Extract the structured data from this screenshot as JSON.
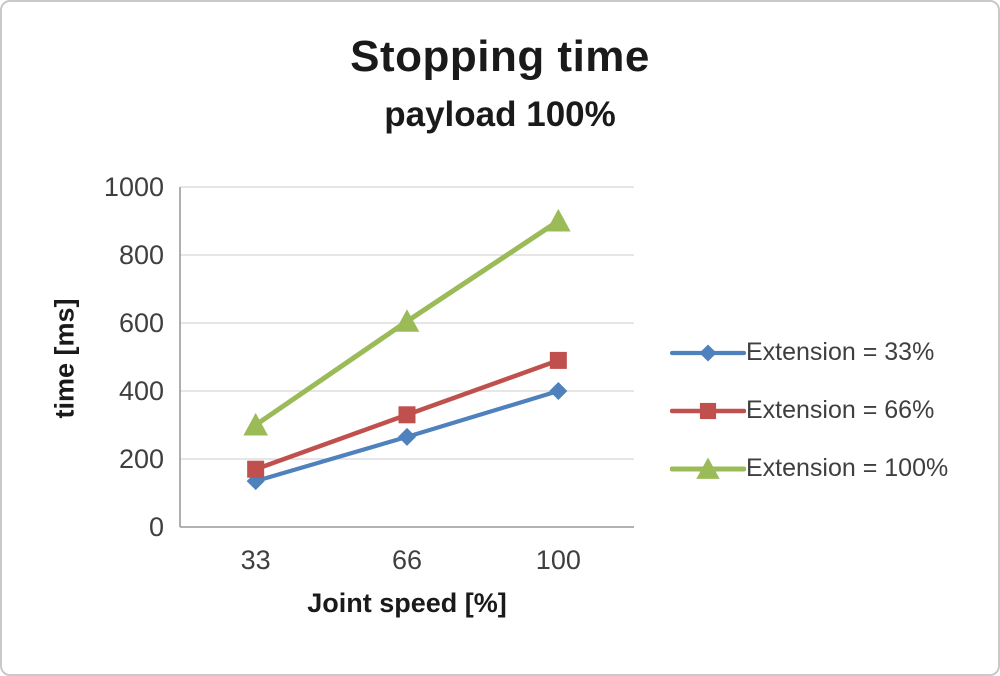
{
  "chart_data": {
    "type": "line",
    "title": "Stopping time",
    "subtitle": "payload 100%",
    "xlabel": "Joint speed [%]",
    "ylabel": "time [ms]",
    "categories": [
      "33",
      "66",
      "100"
    ],
    "series": [
      {
        "name": "Extension = 33%",
        "values": [
          135,
          265,
          400
        ],
        "color": "#4f81bd",
        "marker": "diamond"
      },
      {
        "name": "Extension = 66%",
        "values": [
          170,
          330,
          490
        ],
        "color": "#c0504d",
        "marker": "square"
      },
      {
        "name": "Extension = 100%",
        "values": [
          300,
          605,
          900
        ],
        "color": "#9bbb59",
        "marker": "triangle"
      }
    ],
    "ylim": [
      0,
      1000
    ],
    "yticks": [
      0,
      200,
      400,
      600,
      800,
      1000
    ],
    "grid": true,
    "legend_position": "right"
  },
  "style": {
    "grid_color": "#d6d6d6",
    "axis_color": "#9b9b9b",
    "tick_color": "#3f3f3f",
    "title_color": "#1a1a1a",
    "legend_text_color": "#3f3f3f",
    "background": "#ffffff",
    "border_color": "#c9c9c9"
  }
}
